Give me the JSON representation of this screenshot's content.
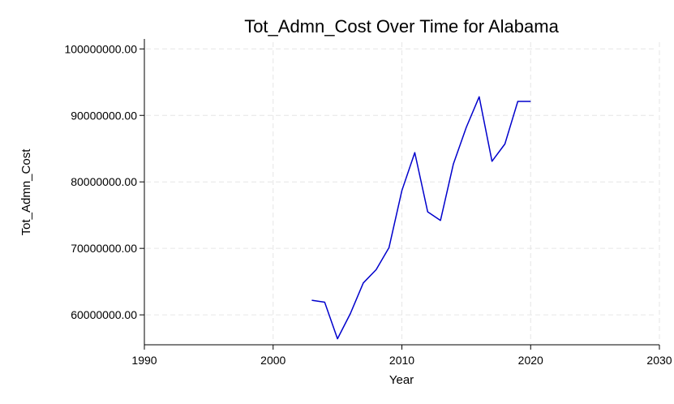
{
  "chart_data": {
    "type": "line",
    "title": "Tot_Admn_Cost Over Time for Alabama",
    "xlabel": "Year",
    "ylabel": "Tot_Admn_Cost",
    "xlim": [
      1990,
      2030
    ],
    "ylim": [
      55500000,
      101500000
    ],
    "xticks": [
      1990,
      2000,
      2010,
      2020,
      2030
    ],
    "xtick_labels": [
      "1990",
      "2000",
      "2010",
      "2020",
      "2030"
    ],
    "yticks": [
      60000000,
      70000000,
      80000000,
      90000000,
      100000000
    ],
    "ytick_labels": [
      "60000000.00",
      "70000000.00",
      "80000000.00",
      "90000000.00",
      "100000000.00"
    ],
    "grid": true,
    "series": [
      {
        "color": "#0000cc",
        "x": [
          2003,
          2004,
          2005,
          2006,
          2007,
          2008,
          2009,
          2010,
          2011,
          2012,
          2013,
          2014,
          2015,
          2016,
          2017,
          2018,
          2019,
          2020
        ],
        "y": [
          62200000,
          61900000,
          56400000,
          60200000,
          64800000,
          66800000,
          70100000,
          78700000,
          84400000,
          75500000,
          74200000,
          82700000,
          88200000,
          92800000,
          83100000,
          85700000,
          92100000,
          92100000
        ]
      }
    ]
  }
}
